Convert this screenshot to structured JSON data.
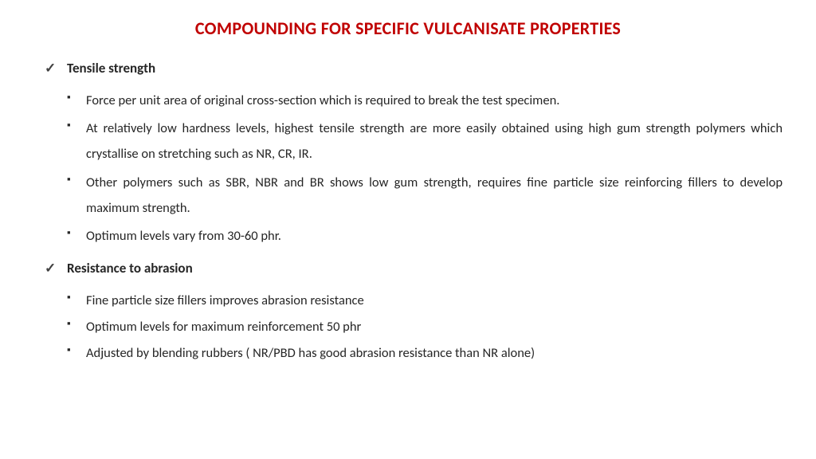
{
  "title": "COMPOUNDING FOR SPECIFIC VULCANISATE PROPERTIES",
  "sections": [
    {
      "heading": "Tensile strength",
      "items": [
        "Force per unit area of original cross-section which is required to break the test specimen.",
        "At relatively low hardness levels, highest tensile strength are more easily obtained using high gum strength polymers which crystallise on stretching such as NR, CR, IR.",
        "Other polymers such as SBR, NBR and BR shows low gum strength, requires fine particle size reinforcing fillers to develop maximum strength.",
        "Optimum levels vary from 30-60 phr."
      ]
    },
    {
      "heading": "Resistance to abrasion",
      "items": [
        "Fine particle size fillers improves abrasion resistance",
        "Optimum levels for maximum reinforcement 50 phr",
        "Adjusted by blending rubbers ( NR/PBD has good abrasion resistance than NR alone)"
      ]
    }
  ],
  "colors": {
    "title": "#c00000",
    "body_text": "#262626",
    "background": "#ffffff"
  },
  "typography": {
    "title_fontsize": 22,
    "heading_fontsize": 17,
    "body_fontsize": 16.5,
    "font_family": "Calibri"
  }
}
